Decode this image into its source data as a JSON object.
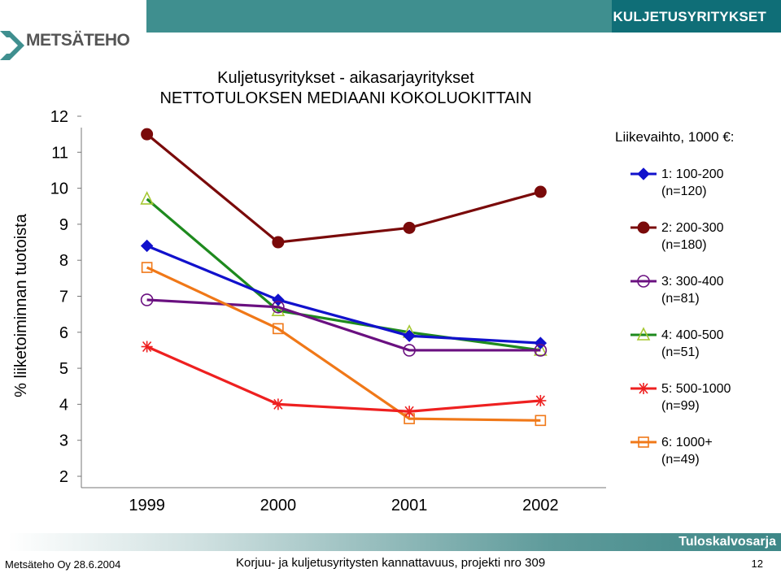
{
  "header": {
    "section_label": "KULJETUSYRITYKSET",
    "logo_text": "METSÄTEHO"
  },
  "chart_data": {
    "type": "line",
    "title_line1": "Kuljetusyritykset - aikasarjayritykset",
    "title_line2": "NETTOTULOKSEN MEDIAANI KOKOLUOKITTAIN",
    "ylabel": "% liiketoiminnan tuotoista",
    "xlabel": "",
    "categories": [
      "1999",
      "2000",
      "2001",
      "2002"
    ],
    "yticks": [
      "2",
      "3",
      "4",
      "5",
      "6",
      "7",
      "8",
      "9",
      "10",
      "11",
      "12"
    ],
    "ylim": [
      2,
      12
    ],
    "grid": false,
    "legend_title": "Liikevaihto, 1000 €:",
    "legend_position": "right",
    "series": [
      {
        "name": "1: 100-200\n(n=120)",
        "label_line1": "1: 100-200",
        "label_line2": "(n=120)",
        "color": "#1111cc",
        "marker": "diamond",
        "values": [
          8.4,
          6.9,
          5.9,
          5.7
        ]
      },
      {
        "name": "2: 200-300\n(n=180)",
        "label_line1": "2: 200-300",
        "label_line2": "(n=180)",
        "color": "#7a0a0a",
        "marker": "circle",
        "values": [
          11.5,
          8.5,
          8.9,
          9.9
        ]
      },
      {
        "name": "3: 300-400\n(n=81)",
        "label_line1": "3: 300-400",
        "label_line2": "(n=81)",
        "color": "#6a1080",
        "marker": "circle-open",
        "values": [
          6.9,
          6.7,
          5.5,
          5.5
        ]
      },
      {
        "name": "4: 400-500\n(n=51)",
        "label_line1": "4: 400-500",
        "label_line2": "(n=51)",
        "color": "#1e8a1e",
        "marker": "triangle-open",
        "values": [
          9.7,
          6.6,
          6.0,
          5.5
        ]
      },
      {
        "name": "5: 500-1000\n(n=99)",
        "label_line1": "5: 500-1000",
        "label_line2": "(n=99)",
        "color": "#ee2020",
        "marker": "star",
        "values": [
          5.6,
          4.0,
          3.8,
          4.1
        ]
      },
      {
        "name": "6: 1000+\n(n=49)",
        "label_line1": "6: 1000+",
        "label_line2": "(n=49)",
        "color": "#f07818",
        "marker": "square-open",
        "values": [
          7.8,
          6.1,
          3.6,
          3.55
        ]
      }
    ]
  },
  "footer": {
    "band_label": "Tuloskalvosarja",
    "left": "Metsäteho Oy 28.6.2004",
    "center": "Korjuu- ja kuljetusyritysten kannattavuus, projekti nro 309",
    "page": "12"
  }
}
